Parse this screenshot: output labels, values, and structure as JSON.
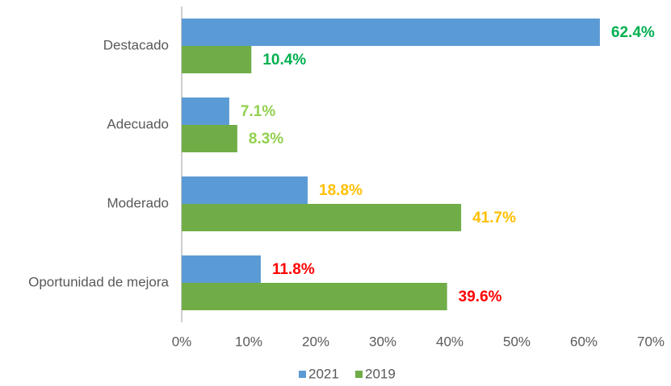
{
  "chart_data": {
    "type": "bar",
    "orientation": "horizontal",
    "categories": [
      "Destacado",
      "Adecuado",
      "Moderado",
      "Oportunidad de mejora"
    ],
    "series": [
      {
        "name": "2021",
        "color": "#5b9bd5",
        "values": [
          62.4,
          7.1,
          18.8,
          11.8
        ],
        "value_labels": [
          "62.4%",
          "7.1%",
          "18.8%",
          "11.8%"
        ]
      },
      {
        "name": "2019",
        "color": "#70ad47",
        "values": [
          10.4,
          8.3,
          41.7,
          39.6
        ],
        "value_labels": [
          "10.4%",
          "8.3%",
          "41.7%",
          "39.6%"
        ]
      }
    ],
    "value_label_colors": [
      "#00b050",
      "#92d050",
      "#ffc000",
      "#ff0000"
    ],
    "xlim": [
      0,
      70
    ],
    "xticks": [
      {
        "value": 0,
        "label": "0%"
      },
      {
        "value": 10,
        "label": "10%"
      },
      {
        "value": 20,
        "label": "20%"
      },
      {
        "value": 30,
        "label": "30%"
      },
      {
        "value": 40,
        "label": "40%"
      },
      {
        "value": 50,
        "label": "50%"
      },
      {
        "value": 60,
        "label": "60%"
      },
      {
        "value": 70,
        "label": "70%"
      }
    ],
    "grid": false,
    "legend": "bottom"
  }
}
